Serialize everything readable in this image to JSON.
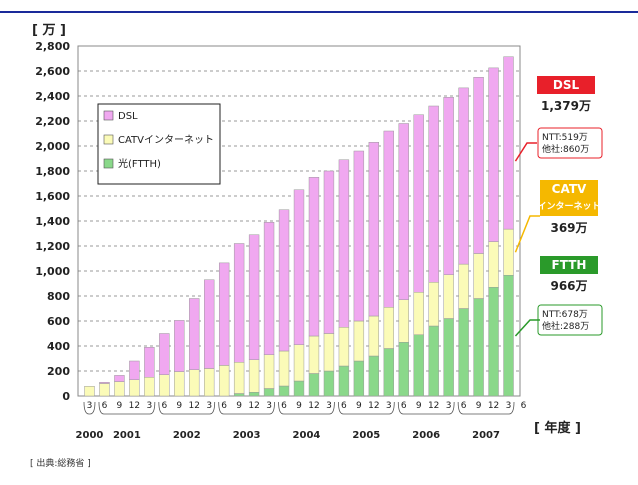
{
  "chart_data": {
    "type": "bar",
    "stacked": true,
    "unit_label": "[ 万 ]",
    "x_axis_label": "[ 年度 ]",
    "source": "[ 出典:総務省 ]",
    "ylim": [
      0,
      2800
    ],
    "yticks": [
      "0",
      "200",
      "400",
      "600",
      "800",
      "1,000",
      "1,200",
      "1,400",
      "1,600",
      "1,800",
      "2,000",
      "2,200",
      "2,400",
      "2,600",
      "2,800"
    ],
    "categories": [
      "3",
      "6",
      "9",
      "12",
      "3",
      "6",
      "9",
      "12",
      "3",
      "6",
      "9",
      "12",
      "3",
      "6",
      "9",
      "12",
      "3",
      "6",
      "9",
      "12",
      "3",
      "6",
      "9",
      "12",
      "3",
      "6",
      "9",
      "12",
      "3"
    ],
    "trailing_tick": "6",
    "years": [
      {
        "label": "2000",
        "from": 0,
        "to": 0
      },
      {
        "label": "2001",
        "from": 1,
        "to": 4
      },
      {
        "label": "2002",
        "from": 5,
        "to": 8
      },
      {
        "label": "2003",
        "from": 9,
        "to": 12
      },
      {
        "label": "2004",
        "from": 13,
        "to": 16
      },
      {
        "label": "2005",
        "from": 17,
        "to": 20
      },
      {
        "label": "2006",
        "from": 21,
        "to": 24
      },
      {
        "label": "2007",
        "from": 25,
        "to": 28
      }
    ],
    "series": [
      {
        "name": "光(FTTH)",
        "color": "#8ad88a",
        "values": [
          0,
          0,
          0,
          0,
          0,
          0,
          0,
          0,
          0,
          0,
          20,
          30,
          60,
          80,
          120,
          180,
          200,
          240,
          280,
          320,
          380,
          430,
          490,
          560,
          620,
          700,
          780,
          870,
          966
        ]
      },
      {
        "name": "CATVインターネット",
        "color": "#fbfbb8",
        "values": [
          78,
          100,
          115,
          130,
          150,
          170,
          195,
          210,
          220,
          245,
          250,
          260,
          270,
          280,
          290,
          300,
          300,
          310,
          320,
          320,
          330,
          340,
          340,
          350,
          350,
          355,
          360,
          365,
          369
        ]
      },
      {
        "name": "DSL",
        "color": "#f0a8f0",
        "values": [
          0,
          10,
          50,
          150,
          240,
          330,
          410,
          570,
          710,
          820,
          950,
          1000,
          1060,
          1130,
          1240,
          1270,
          1300,
          1340,
          1360,
          1390,
          1410,
          1410,
          1420,
          1410,
          1420,
          1410,
          1410,
          1390,
          1379
        ]
      }
    ],
    "legend": [
      "DSL",
      "CATVインターネット",
      "光(FTTH)"
    ],
    "callouts": [
      {
        "title": "DSL",
        "value": "1,379万",
        "sub": [
          "NTT:519万",
          "他社:860万"
        ],
        "color": "#e8202a"
      },
      {
        "title": "CATV",
        "title2": "インターネット",
        "value": "369万",
        "sub": [],
        "color": "#f5b800"
      },
      {
        "title": "FTTH",
        "value": "966万",
        "sub": [
          "NTT:678万",
          "他社:288万"
        ],
        "color": "#2a9a2a"
      }
    ]
  }
}
